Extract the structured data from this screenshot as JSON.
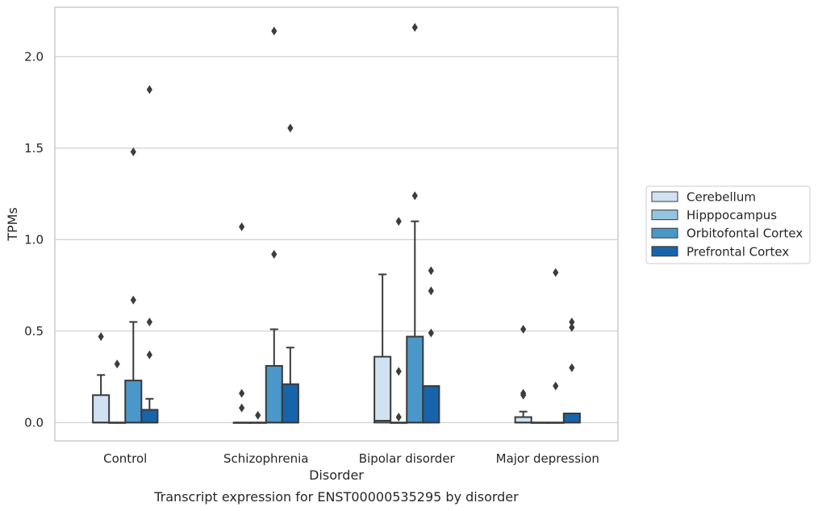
{
  "chart_data": {
    "type": "box",
    "title": "",
    "caption": "Transcript expression for ENST00000535295 by disorder",
    "xlabel": "Disorder",
    "ylabel": "TPMs",
    "ylim": [
      -0.1,
      2.27
    ],
    "yticks": [
      0.0,
      0.5,
      1.0,
      1.5,
      2.0
    ],
    "ytick_labels": [
      "0.0",
      "0.5",
      "1.0",
      "1.5",
      "2.0"
    ],
    "grid": "horizontal",
    "legend_position": "right",
    "categories": [
      "Control",
      "Schizophrenia",
      "Bipolar disorder",
      "Major depression"
    ],
    "series": [
      {
        "name": "Cerebellum",
        "color": "#d0e1f2",
        "boxes": [
          {
            "q1": 0.0,
            "median": 0.0,
            "q3": 0.15,
            "whisker_low": 0.0,
            "whisker_high": 0.26,
            "outliers": [
              0.47
            ]
          },
          {
            "q1": 0.0,
            "median": 0.0,
            "q3": 0.0,
            "whisker_low": 0.0,
            "whisker_high": 0.0,
            "outliers": [
              0.08,
              0.16,
              1.07
            ]
          },
          {
            "q1": 0.0,
            "median": 0.01,
            "q3": 0.36,
            "whisker_low": 0.0,
            "whisker_high": 0.81,
            "outliers": []
          },
          {
            "q1": 0.0,
            "median": 0.0,
            "q3": 0.03,
            "whisker_low": 0.0,
            "whisker_high": 0.06,
            "outliers": [
              0.15,
              0.16,
              0.51
            ]
          }
        ]
      },
      {
        "name": "Hipppocampus",
        "color": "#94c4df",
        "boxes": [
          {
            "q1": 0.0,
            "median": 0.0,
            "q3": 0.0,
            "whisker_low": 0.0,
            "whisker_high": 0.0,
            "outliers": [
              0.32
            ]
          },
          {
            "q1": 0.0,
            "median": 0.0,
            "q3": 0.0,
            "whisker_low": 0.0,
            "whisker_high": 0.0,
            "outliers": [
              0.04
            ]
          },
          {
            "q1": 0.0,
            "median": 0.0,
            "q3": 0.0,
            "whisker_low": 0.0,
            "whisker_high": 0.0,
            "outliers": [
              0.03,
              0.28,
              1.1
            ]
          },
          {
            "q1": 0.0,
            "median": 0.0,
            "q3": 0.0,
            "whisker_low": 0.0,
            "whisker_high": 0.0,
            "outliers": []
          }
        ]
      },
      {
        "name": "Orbitofontal Cortex",
        "color": "#4a98c9",
        "boxes": [
          {
            "q1": 0.0,
            "median": 0.0,
            "q3": 0.23,
            "whisker_low": 0.0,
            "whisker_high": 0.55,
            "outliers": [
              0.67,
              1.48
            ]
          },
          {
            "q1": 0.0,
            "median": 0.0,
            "q3": 0.31,
            "whisker_low": 0.0,
            "whisker_high": 0.51,
            "outliers": [
              0.92,
              2.14
            ]
          },
          {
            "q1": 0.0,
            "median": 0.0,
            "q3": 0.47,
            "whisker_low": 0.0,
            "whisker_high": 1.1,
            "outliers": [
              1.24,
              2.16
            ]
          },
          {
            "q1": 0.0,
            "median": 0.0,
            "q3": 0.0,
            "whisker_low": 0.0,
            "whisker_high": 0.0,
            "outliers": [
              0.2,
              0.82
            ]
          }
        ]
      },
      {
        "name": "Prefrontal Cortex",
        "color": "#1764ab",
        "boxes": [
          {
            "q1": 0.0,
            "median": 0.0,
            "q3": 0.07,
            "whisker_low": 0.0,
            "whisker_high": 0.13,
            "outliers": [
              0.37,
              0.55,
              1.82
            ]
          },
          {
            "q1": 0.0,
            "median": 0.0,
            "q3": 0.21,
            "whisker_low": 0.0,
            "whisker_high": 0.41,
            "outliers": [
              1.61
            ]
          },
          {
            "q1": 0.0,
            "median": 0.0,
            "q3": 0.2,
            "whisker_low": 0.0,
            "whisker_high": 0.2,
            "outliers": [
              0.49,
              0.72,
              0.83
            ]
          },
          {
            "q1": 0.0,
            "median": 0.0,
            "q3": 0.05,
            "whisker_low": 0.0,
            "whisker_high": 0.05,
            "outliers": [
              0.3,
              0.52,
              0.55
            ]
          }
        ]
      }
    ]
  }
}
